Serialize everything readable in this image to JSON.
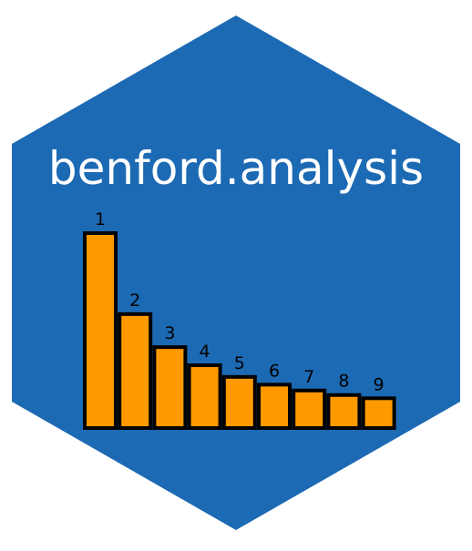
{
  "logo": {
    "title": "benford.analysis",
    "hex_fill": "#1c6ab4",
    "bar_fill": "#ff9900",
    "bar_stroke": "#000000"
  },
  "chart_data": {
    "type": "bar",
    "categories": [
      "1",
      "2",
      "3",
      "4",
      "5",
      "6",
      "7",
      "8",
      "9"
    ],
    "values": [
      30.1,
      17.6,
      12.5,
      9.7,
      7.9,
      6.7,
      5.8,
      5.1,
      4.6
    ],
    "ylim": [
      0,
      30.1
    ],
    "grid": false
  }
}
